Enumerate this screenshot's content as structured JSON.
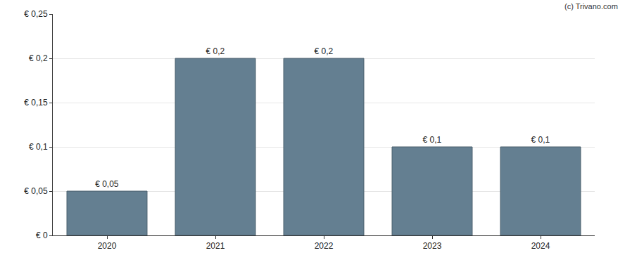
{
  "chart_data": {
    "type": "bar",
    "categories": [
      "2020",
      "2021",
      "2022",
      "2023",
      "2024"
    ],
    "values": [
      0.05,
      0.2,
      0.2,
      0.1,
      0.1
    ],
    "value_labels": [
      "€ 0,05",
      "€ 0,2",
      "€ 0,2",
      "€ 0,1",
      "€ 0,1"
    ],
    "data_labels": true,
    "color": "#647f91",
    "ylim": [
      0,
      0.25
    ],
    "yticks": [
      {
        "value": 0,
        "label": "€ 0"
      },
      {
        "value": 0.05,
        "label": "€ 0,05"
      },
      {
        "value": 0.1,
        "label": "€ 0,1"
      },
      {
        "value": 0.15,
        "label": "€ 0,15"
      },
      {
        "value": 0.2,
        "label": "€ 0,2"
      },
      {
        "value": 0.25,
        "label": "€ 0,25"
      }
    ],
    "grid": true,
    "annotations": [
      "(c) Trivano.com"
    ]
  }
}
